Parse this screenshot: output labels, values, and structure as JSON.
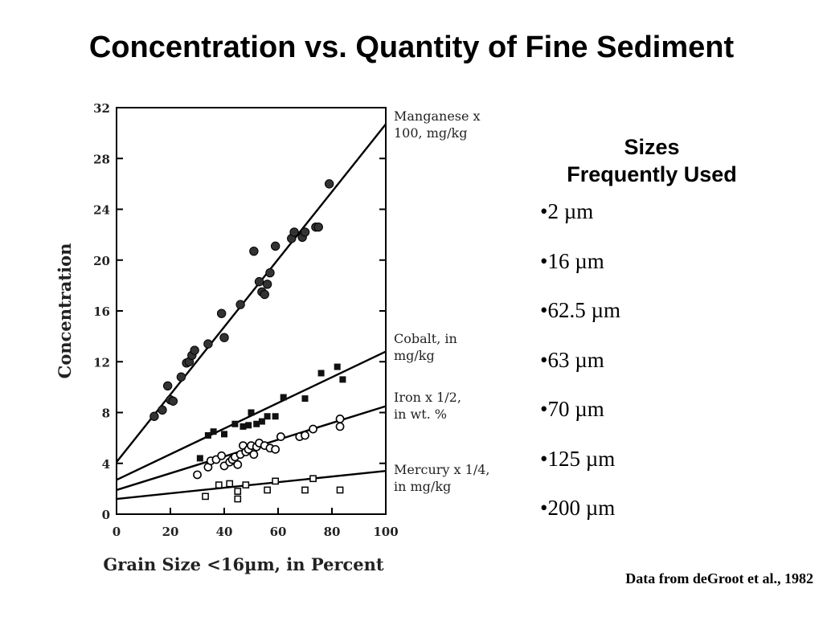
{
  "slide": {
    "title": "Concentration vs. Quantity of Fine Sediment",
    "sizes_heading_line1": "Sizes",
    "sizes_heading_line2": "Frequently Used",
    "sizes": [
      "•2 µm",
      "•16 µm",
      "•62.5 µm",
      "•63 µm",
      "•70 µm",
      "•125 µm",
      "•200 µm"
    ],
    "source": "Data from deGroot et al., 1982"
  },
  "chart_data": {
    "type": "scatter",
    "xlabel": "Grain Size <16µm, in Percent",
    "ylabel": "Concentration",
    "xlim": [
      0,
      100
    ],
    "ylim": [
      0,
      32
    ],
    "x_ticks": [
      "0",
      "20",
      "40",
      "60",
      "80",
      "100"
    ],
    "y_ticks": [
      "0",
      "4",
      "8",
      "12",
      "16",
      "20",
      "24",
      "28",
      "32"
    ],
    "grid": false,
    "series": [
      {
        "name_lines": [
          "Manganese x",
          "100, mg/kg"
        ],
        "marker": "filled-circle",
        "fit": [
          [
            0,
            4.1
          ],
          [
            100,
            30.7
          ]
        ],
        "points": [
          [
            14,
            7.7
          ],
          [
            17,
            8.2
          ],
          [
            19,
            10.1
          ],
          [
            20,
            9
          ],
          [
            21,
            8.9
          ],
          [
            24,
            10.8
          ],
          [
            26,
            11.9
          ],
          [
            27,
            12
          ],
          [
            28,
            12.5
          ],
          [
            29,
            12.9
          ],
          [
            34,
            13.4
          ],
          [
            39,
            15.8
          ],
          [
            40,
            13.9
          ],
          [
            46,
            16.5
          ],
          [
            51,
            20.7
          ],
          [
            53,
            18.3
          ],
          [
            54,
            17.5
          ],
          [
            55,
            17.3
          ],
          [
            56,
            18.1
          ],
          [
            57,
            19
          ],
          [
            59,
            21.1
          ],
          [
            65,
            21.7
          ],
          [
            66,
            22.2
          ],
          [
            69,
            21.8
          ],
          [
            70,
            22.2
          ],
          [
            74,
            22.6
          ],
          [
            75,
            22.6
          ],
          [
            79,
            26
          ]
        ]
      },
      {
        "name_lines": [
          "Cobalt, in",
          "mg/kg"
        ],
        "marker": "filled-square",
        "fit": [
          [
            0,
            2.7
          ],
          [
            100,
            12.8
          ]
        ],
        "points": [
          [
            31,
            4.4
          ],
          [
            34,
            6.2
          ],
          [
            36,
            6.5
          ],
          [
            40,
            6.3
          ],
          [
            44,
            7.1
          ],
          [
            47,
            6.9
          ],
          [
            49,
            7
          ],
          [
            50,
            8
          ],
          [
            52,
            7.1
          ],
          [
            54,
            7.3
          ],
          [
            56,
            7.7
          ],
          [
            59,
            7.7
          ],
          [
            62,
            9.2
          ],
          [
            70,
            9.1
          ],
          [
            76,
            11.1
          ],
          [
            82,
            11.6
          ],
          [
            84,
            10.6
          ]
        ]
      },
      {
        "name_lines": [
          "Iron x 1/2,",
          "in wt. %"
        ],
        "marker": "open-circle",
        "fit": [
          [
            0,
            1.9
          ],
          [
            100,
            8.5
          ]
        ],
        "points": [
          [
            30,
            3.1
          ],
          [
            34,
            3.7
          ],
          [
            35,
            4.2
          ],
          [
            37,
            4.3
          ],
          [
            39,
            4.6
          ],
          [
            40,
            3.8
          ],
          [
            42,
            4.1
          ],
          [
            43,
            4.3
          ],
          [
            44,
            4.5
          ],
          [
            45,
            3.9
          ],
          [
            46,
            4.7
          ],
          [
            47,
            5.4
          ],
          [
            48,
            4.9
          ],
          [
            49,
            5.1
          ],
          [
            50,
            5.4
          ],
          [
            51,
            4.7
          ],
          [
            52,
            5.3
          ],
          [
            53,
            5.6
          ],
          [
            55,
            5.4
          ],
          [
            57,
            5.2
          ],
          [
            59,
            5.1
          ],
          [
            61,
            6.1
          ],
          [
            68,
            6.1
          ],
          [
            70,
            6.2
          ],
          [
            73,
            6.7
          ],
          [
            83,
            7.5
          ],
          [
            83,
            6.9
          ]
        ]
      },
      {
        "name_lines": [
          "Mercury x 1/4,",
          "in mg/kg"
        ],
        "marker": "open-square",
        "fit": [
          [
            0,
            1.2
          ],
          [
            100,
            3.4
          ]
        ],
        "points": [
          [
            33,
            1.4
          ],
          [
            38,
            2.3
          ],
          [
            42,
            2.4
          ],
          [
            45,
            1.8
          ],
          [
            45,
            1.2
          ],
          [
            48,
            2.3
          ],
          [
            56,
            1.9
          ],
          [
            59,
            2.6
          ],
          [
            70,
            1.9
          ],
          [
            73,
            2.8
          ],
          [
            83,
            1.9
          ]
        ]
      }
    ]
  }
}
